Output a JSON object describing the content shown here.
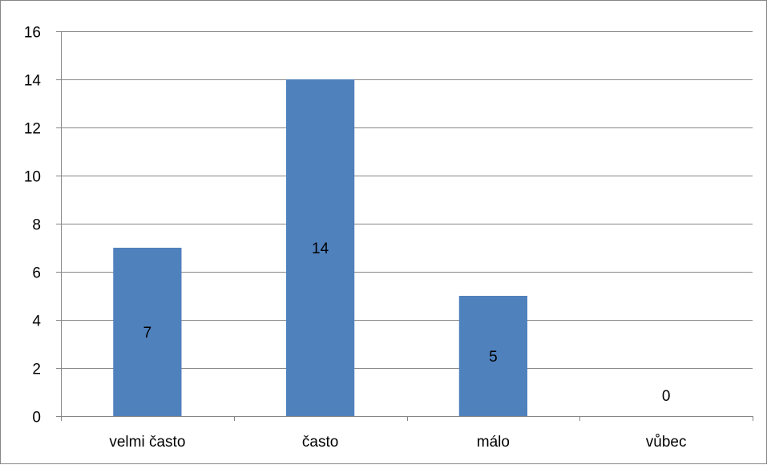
{
  "chart_data": {
    "type": "bar",
    "categories": [
      "velmi často",
      "často",
      "málo",
      "vůbec"
    ],
    "values": [
      7,
      14,
      5,
      0
    ],
    "data_labels": [
      "7",
      "14",
      "5",
      "0"
    ],
    "y_ticks": [
      "0",
      "2",
      "4",
      "6",
      "8",
      "10",
      "12",
      "14",
      "16"
    ],
    "ylim": [
      0,
      16
    ],
    "y_step": 2,
    "grid": true,
    "legend": "none",
    "title": "",
    "xlabel": "",
    "ylabel": "",
    "bar_color": "#4f81bd",
    "grid_color": "#868686"
  }
}
